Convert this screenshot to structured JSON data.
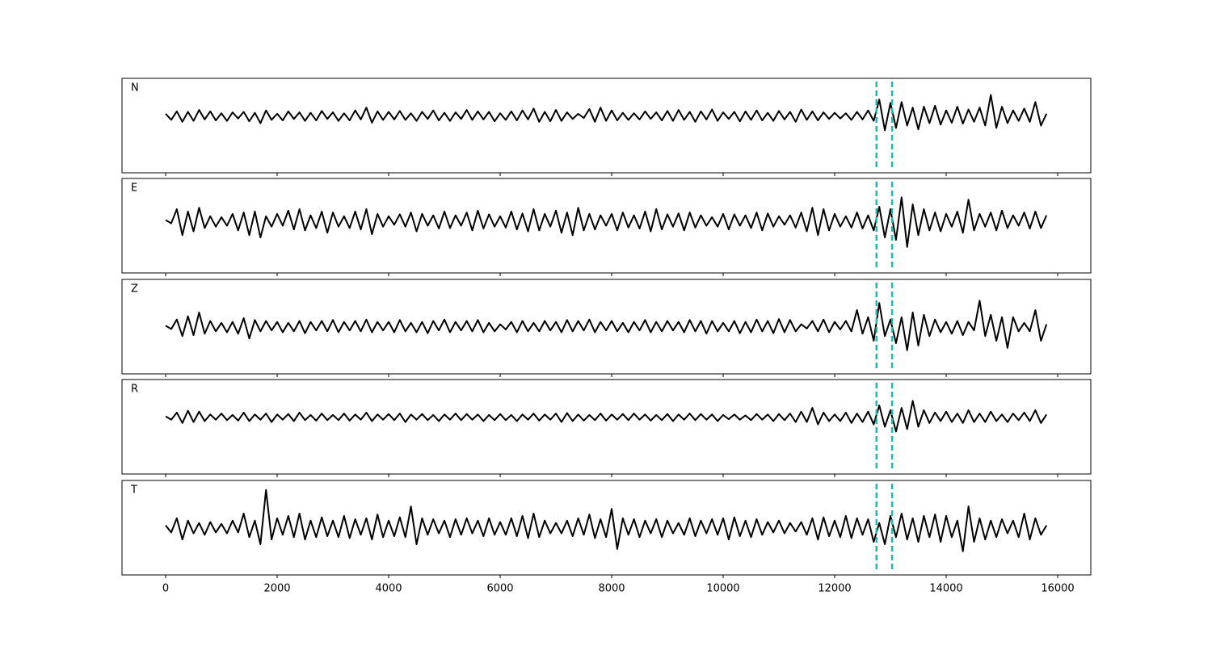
{
  "chart_data": {
    "type": "line",
    "subplots": true,
    "x": [
      0,
      100,
      200,
      300,
      400,
      500,
      600,
      700,
      800,
      900,
      1000,
      1100,
      1200,
      1300,
      1400,
      1500,
      1600,
      1700,
      1800,
      1900,
      2000,
      2100,
      2200,
      2300,
      2400,
      2500,
      2600,
      2700,
      2800,
      2900,
      3000,
      3100,
      3200,
      3300,
      3400,
      3500,
      3600,
      3700,
      3800,
      3900,
      4000,
      4100,
      4200,
      4300,
      4400,
      4500,
      4600,
      4700,
      4800,
      4900,
      5000,
      5100,
      5200,
      5300,
      5400,
      5500,
      5600,
      5700,
      5800,
      5900,
      6000,
      6100,
      6200,
      6300,
      6400,
      6500,
      6600,
      6700,
      6800,
      6900,
      7000,
      7100,
      7200,
      7300,
      7400,
      7500,
      7600,
      7700,
      7800,
      7900,
      8000,
      8100,
      8200,
      8300,
      8400,
      8500,
      8600,
      8700,
      8800,
      8900,
      9000,
      9100,
      9200,
      9300,
      9400,
      9500,
      9600,
      9700,
      9800,
      9900,
      10000,
      10100,
      10200,
      10300,
      10400,
      10500,
      10600,
      10700,
      10800,
      10900,
      11000,
      11100,
      11200,
      11300,
      11400,
      11500,
      11600,
      11700,
      11800,
      11900,
      12000,
      12100,
      12200,
      12300,
      12400,
      12500,
      12600,
      12700,
      12800,
      12900,
      13000,
      13100,
      13200,
      13300,
      13400,
      13500,
      13600,
      13700,
      13800,
      13900,
      14000,
      14100,
      14200,
      14300,
      14400,
      14500,
      14600,
      14700,
      14800,
      14900,
      15000,
      15100,
      15200,
      15300,
      15400,
      15500,
      15600,
      15700,
      15800
    ],
    "xlim": [
      -783,
      16594
    ],
    "xticks": [
      0,
      2000,
      4000,
      6000,
      8000,
      10000,
      12000,
      14000,
      16000
    ],
    "vlines": [
      12750,
      13030
    ],
    "vline_color": "#17beb0",
    "series": [
      {
        "name": "N",
        "color": "#000000",
        "ylim": [
          -1.2,
          0.8
        ],
        "values": [
          0.05,
          -0.08,
          0.1,
          -0.12,
          0.09,
          -0.1,
          0.13,
          -0.07,
          0.1,
          -0.09,
          0.06,
          -0.1,
          0.08,
          -0.05,
          0.09,
          -0.11,
          0.07,
          -0.15,
          0.12,
          -0.08,
          0.05,
          -0.09,
          0.1,
          -0.06,
          0.08,
          -0.1,
          0.07,
          -0.09,
          0.11,
          -0.06,
          0.08,
          -0.1,
          0.06,
          -0.09,
          0.12,
          -0.07,
          0.18,
          -0.14,
          0.1,
          -0.08,
          0.09,
          -0.07,
          0.11,
          -0.08,
          0.06,
          -0.1,
          0.09,
          -0.06,
          0.12,
          -0.09,
          0.07,
          -0.1,
          0.08,
          -0.06,
          0.13,
          -0.08,
          0.1,
          -0.07,
          0.09,
          -0.11,
          0.06,
          -0.08,
          0.1,
          -0.09,
          0.12,
          -0.07,
          0.16,
          -0.12,
          0.09,
          -0.11,
          0.13,
          -0.1,
          0.08,
          -0.06,
          0.05,
          -0.04,
          0.15,
          -0.12,
          0.18,
          -0.1,
          0.12,
          -0.09,
          0.07,
          -0.08,
          0.06,
          -0.07,
          0.1,
          -0.06,
          0.08,
          -0.09,
          0.11,
          -0.1,
          0.13,
          -0.08,
          0.09,
          -0.12,
          0.1,
          -0.07,
          0.14,
          -0.1,
          0.08,
          -0.06,
          0.09,
          -0.11,
          0.1,
          -0.08,
          0.12,
          -0.09,
          0.07,
          -0.1,
          0.11,
          -0.07,
          0.09,
          -0.12,
          0.14,
          -0.08,
          0.1,
          -0.09,
          0.08,
          -0.06,
          0.07,
          -0.05,
          0.06,
          -0.08,
          0.09,
          -0.07,
          0.12,
          -0.1,
          0.35,
          -0.3,
          0.28,
          -0.25,
          0.3,
          -0.2,
          0.18,
          -0.28,
          0.2,
          -0.15,
          0.22,
          -0.18,
          0.12,
          -0.14,
          0.2,
          -0.16,
          0.14,
          -0.12,
          0.18,
          -0.2,
          0.45,
          -0.25,
          0.2,
          -0.15,
          0.12,
          -0.1,
          0.16,
          -0.12,
          0.3,
          -0.2,
          0.05
        ]
      },
      {
        "name": "E",
        "color": "#000000",
        "ylim": [
          -1.1,
          0.9
        ],
        "values": [
          0.02,
          -0.05,
          0.25,
          -0.3,
          0.2,
          -0.22,
          0.28,
          -0.15,
          0.1,
          -0.12,
          0.08,
          -0.1,
          0.15,
          -0.2,
          0.18,
          -0.3,
          0.2,
          -0.35,
          0.1,
          -0.12,
          0.15,
          -0.1,
          0.22,
          -0.18,
          0.25,
          -0.2,
          0.12,
          -0.15,
          0.2,
          -0.25,
          0.18,
          -0.12,
          0.1,
          -0.15,
          0.2,
          -0.18,
          0.25,
          -0.28,
          0.15,
          -0.12,
          0.1,
          -0.08,
          0.14,
          -0.12,
          0.18,
          -0.22,
          0.15,
          -0.1,
          0.12,
          -0.16,
          0.2,
          -0.15,
          0.12,
          -0.1,
          0.18,
          -0.2,
          0.22,
          -0.16,
          0.14,
          -0.12,
          0.1,
          -0.14,
          0.2,
          -0.18,
          0.16,
          -0.22,
          0.25,
          -0.2,
          0.15,
          -0.12,
          0.22,
          -0.25,
          0.18,
          -0.3,
          0.28,
          -0.2,
          0.15,
          -0.18,
          0.12,
          -0.1,
          0.15,
          -0.2,
          0.18,
          -0.14,
          0.12,
          -0.16,
          0.2,
          -0.22,
          0.25,
          -0.18,
          0.14,
          -0.12,
          0.16,
          -0.2,
          0.18,
          -0.14,
          0.12,
          -0.1,
          0.08,
          -0.12,
          0.15,
          -0.18,
          0.14,
          -0.1,
          0.12,
          -0.15,
          0.18,
          -0.2,
          0.16,
          -0.12,
          0.1,
          -0.08,
          0.12,
          -0.14,
          0.18,
          -0.22,
          0.28,
          -0.3,
          0.25,
          -0.2,
          0.15,
          -0.12,
          0.1,
          -0.14,
          0.18,
          -0.16,
          0.12,
          -0.2,
          0.3,
          -0.35,
          0.25,
          -0.4,
          0.5,
          -0.55,
          0.35,
          -0.3,
          0.25,
          -0.2,
          0.18,
          -0.22,
          0.15,
          -0.12,
          0.2,
          -0.25,
          0.45,
          -0.2,
          0.15,
          -0.12,
          0.18,
          -0.2,
          0.22,
          -0.15,
          0.12,
          -0.1,
          0.18,
          -0.16,
          0.2,
          -0.15,
          0.12
        ]
      },
      {
        "name": "Z",
        "color": "#000000",
        "ylim": [
          -1,
          1
        ],
        "values": [
          0.02,
          -0.05,
          0.15,
          -0.2,
          0.22,
          -0.18,
          0.3,
          -0.15,
          0.12,
          -0.1,
          0.08,
          -0.12,
          0.1,
          -0.15,
          0.18,
          -0.25,
          0.14,
          -0.1,
          0.12,
          -0.08,
          0.1,
          -0.12,
          0.08,
          -0.1,
          0.12,
          -0.14,
          0.1,
          -0.08,
          0.12,
          -0.1,
          0.14,
          -0.12,
          0.1,
          -0.08,
          0.12,
          -0.1,
          0.15,
          -0.12,
          0.1,
          -0.08,
          0.1,
          -0.12,
          0.14,
          -0.1,
          0.08,
          -0.12,
          0.1,
          -0.14,
          0.12,
          -0.08,
          0.15,
          -0.12,
          0.1,
          -0.08,
          0.12,
          -0.1,
          0.14,
          -0.12,
          0.08,
          -0.1,
          0.05,
          -0.06,
          0.1,
          -0.12,
          0.12,
          -0.1,
          0.08,
          -0.1,
          0.12,
          -0.08,
          0.1,
          -0.12,
          0.14,
          -0.1,
          0.12,
          -0.08,
          0.15,
          -0.12,
          0.1,
          -0.08,
          0.12,
          -0.1,
          0.08,
          -0.12,
          0.1,
          -0.08,
          0.14,
          -0.12,
          0.1,
          -0.1,
          0.12,
          -0.08,
          0.1,
          -0.12,
          0.14,
          -0.1,
          0.12,
          -0.15,
          0.12,
          -0.1,
          0.08,
          -0.1,
          0.12,
          -0.14,
          0.1,
          -0.12,
          0.15,
          -0.1,
          0.12,
          -0.14,
          0.16,
          -0.12,
          0.14,
          -0.1,
          0.05,
          -0.04,
          0.12,
          -0.1,
          0.15,
          -0.12,
          0.1,
          -0.06,
          0.12,
          -0.1,
          0.35,
          -0.15,
          0.2,
          -0.3,
          0.5,
          -0.2,
          0.15,
          -0.35,
          0.2,
          -0.5,
          0.3,
          -0.4,
          0.25,
          -0.2,
          0.15,
          -0.12,
          0.1,
          -0.15,
          0.12,
          -0.18,
          0.1,
          -0.08,
          0.55,
          -0.2,
          0.25,
          -0.3,
          0.2,
          -0.45,
          0.2,
          -0.1,
          0.08,
          -0.1,
          0.35,
          -0.3,
          0.05
        ]
      },
      {
        "name": "R",
        "color": "#000000",
        "ylim": [
          -1.2,
          0.8
        ],
        "values": [
          0.02,
          -0.05,
          0.1,
          -0.12,
          0.14,
          -0.1,
          0.12,
          -0.08,
          0.06,
          -0.05,
          0.08,
          -0.06,
          0.05,
          -0.07,
          0.1,
          -0.08,
          0.06,
          -0.05,
          0.08,
          -0.1,
          0.06,
          -0.05,
          0.07,
          -0.08,
          0.1,
          -0.06,
          0.05,
          -0.07,
          0.08,
          -0.06,
          0.05,
          -0.06,
          0.08,
          -0.07,
          0.06,
          -0.05,
          0.1,
          -0.08,
          0.06,
          -0.05,
          0.07,
          -0.06,
          0.08,
          -0.1,
          0.06,
          -0.05,
          0.07,
          -0.06,
          0.05,
          -0.08,
          0.06,
          -0.05,
          0.08,
          -0.06,
          0.07,
          -0.05,
          0.06,
          -0.08,
          0.05,
          -0.06,
          0.07,
          -0.06,
          0.05,
          -0.08,
          0.06,
          -0.05,
          0.08,
          -0.07,
          0.06,
          -0.05,
          0.08,
          -0.1,
          0.09,
          -0.08,
          0.06,
          -0.07,
          0.05,
          -0.06,
          0.08,
          -0.07,
          0.06,
          -0.05,
          0.07,
          -0.06,
          0.08,
          -0.05,
          0.06,
          -0.07,
          0.05,
          -0.06,
          0.07,
          -0.08,
          0.06,
          -0.05,
          0.08,
          -0.06,
          0.07,
          -0.05,
          0.06,
          -0.08,
          0.05,
          -0.04,
          0.06,
          -0.05,
          0.04,
          -0.06,
          0.07,
          -0.05,
          0.06,
          -0.08,
          0.07,
          -0.06,
          0.08,
          -0.1,
          0.12,
          -0.1,
          0.2,
          -0.15,
          0.1,
          -0.08,
          0.06,
          -0.08,
          0.1,
          -0.12,
          0.08,
          -0.1,
          0.12,
          -0.15,
          0.25,
          -0.2,
          0.15,
          -0.3,
          0.2,
          -0.25,
          0.35,
          -0.2,
          0.15,
          -0.12,
          0.1,
          -0.08,
          0.12,
          -0.1,
          0.08,
          -0.12,
          0.15,
          -0.1,
          0.08,
          -0.1,
          0.12,
          -0.08,
          0.06,
          -0.1,
          0.08,
          -0.06,
          0.1,
          -0.08,
          0.15,
          -0.12,
          0.06
        ]
      },
      {
        "name": "T",
        "color": "#000000",
        "ylim": [
          -1,
          1
        ],
        "values": [
          0.05,
          -0.1,
          0.2,
          -0.25,
          0.15,
          -0.12,
          0.1,
          -0.15,
          0.12,
          -0.1,
          0.08,
          -0.12,
          0.15,
          -0.1,
          0.3,
          -0.2,
          0.15,
          -0.35,
          0.8,
          -0.25,
          0.2,
          -0.15,
          0.25,
          -0.2,
          0.3,
          -0.25,
          0.15,
          -0.2,
          0.22,
          -0.18,
          0.15,
          -0.2,
          0.25,
          -0.22,
          0.18,
          -0.15,
          0.2,
          -0.25,
          0.28,
          -0.2,
          0.15,
          -0.18,
          0.22,
          -0.2,
          0.45,
          -0.35,
          0.2,
          -0.15,
          0.18,
          -0.12,
          0.15,
          -0.2,
          0.18,
          -0.15,
          0.2,
          -0.12,
          0.15,
          -0.18,
          0.2,
          -0.15,
          0.12,
          -0.15,
          0.2,
          -0.18,
          0.25,
          -0.22,
          0.3,
          -0.2,
          0.15,
          -0.12,
          0.1,
          -0.12,
          0.15,
          -0.18,
          0.2,
          -0.15,
          0.28,
          -0.22,
          0.18,
          -0.2,
          0.4,
          -0.45,
          0.2,
          -0.15,
          0.18,
          -0.2,
          0.15,
          -0.12,
          0.18,
          -0.2,
          0.15,
          -0.12,
          0.1,
          -0.15,
          0.2,
          -0.18,
          0.15,
          -0.12,
          0.18,
          -0.15,
          0.2,
          -0.25,
          0.22,
          -0.18,
          0.15,
          -0.2,
          0.18,
          -0.15,
          0.12,
          -0.1,
          0.15,
          -0.12,
          0.1,
          -0.08,
          0.12,
          -0.15,
          0.2,
          -0.25,
          0.22,
          -0.18,
          0.15,
          -0.2,
          0.25,
          -0.22,
          0.2,
          -0.15,
          0.18,
          -0.3,
          0.1,
          -0.35,
          0.25,
          -0.2,
          0.3,
          -0.25,
          0.2,
          -0.3,
          0.25,
          -0.2,
          0.28,
          -0.3,
          0.25,
          -0.2,
          0.15,
          -0.5,
          0.45,
          -0.3,
          0.2,
          -0.25,
          0.15,
          -0.2,
          0.18,
          -0.12,
          0.15,
          -0.2,
          0.3,
          -0.25,
          0.2,
          -0.15,
          0.05
        ]
      }
    ]
  }
}
